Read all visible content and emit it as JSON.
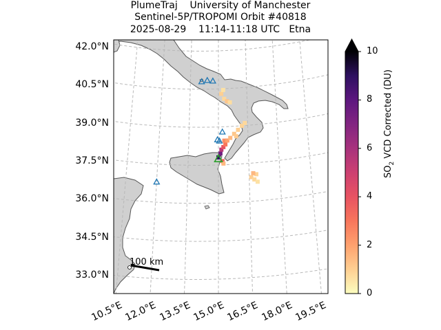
{
  "title": {
    "line1": "PlumeTraj    University of Manchester",
    "line2": "Sentinel-5P/TROPOMI Orbit #40818",
    "line3": "2025-08-29    11:14-11:18 UTC   Etna"
  },
  "axes": {
    "y_ticks": [
      {
        "value": 42.0,
        "label": "42.0°N"
      },
      {
        "value": 40.5,
        "label": "40.5°N"
      },
      {
        "value": 39.0,
        "label": "39.0°N"
      },
      {
        "value": 37.5,
        "label": "37.5°N"
      },
      {
        "value": 36.0,
        "label": "36.0°N"
      },
      {
        "value": 34.5,
        "label": "34.5°N"
      },
      {
        "value": 33.0,
        "label": "33.0°N"
      }
    ],
    "x_ticks": [
      {
        "value": 10.5,
        "label": "10.5°E"
      },
      {
        "value": 12.0,
        "label": "12.0°E"
      },
      {
        "value": 13.5,
        "label": "13.5°E"
      },
      {
        "value": 15.0,
        "label": "15.0°E"
      },
      {
        "value": 16.5,
        "label": "16.5°E"
      },
      {
        "value": 18.0,
        "label": "18.0°E"
      },
      {
        "value": 19.5,
        "label": "19.5°E"
      }
    ]
  },
  "colorbar": {
    "label_prefix": "SO",
    "label_sub": "2",
    "label_suffix": " VCD Corrected (DU)",
    "min": 0,
    "max": 10,
    "extend": "max",
    "ticks": [
      {
        "value": 0,
        "label": "0"
      },
      {
        "value": 2,
        "label": "2"
      },
      {
        "value": 4,
        "label": "4"
      },
      {
        "value": 6,
        "label": "6"
      },
      {
        "value": 8,
        "label": "8"
      },
      {
        "value": 10,
        "label": "10"
      }
    ],
    "colormap": "magma_r"
  },
  "scale_bar": {
    "label": "100 km"
  },
  "colors": {
    "land": "#d0d0d0",
    "coast": "#555555",
    "grid": "#b8b8b8",
    "volcano_marker": "#1f77b4",
    "source_marker": "#2ca02c"
  },
  "volcanoes": [
    {
      "lon": 14.1,
      "lat": 40.8
    },
    {
      "lon": 14.4,
      "lat": 40.85
    },
    {
      "lon": 14.7,
      "lat": 40.82
    },
    {
      "lon": 15.2,
      "lat": 38.8
    },
    {
      "lon": 14.95,
      "lat": 38.5
    },
    {
      "lon": 15.05,
      "lat": 38.45
    },
    {
      "lon": 12.0,
      "lat": 36.8
    }
  ],
  "source_volcano": {
    "lon": 15.0,
    "lat": 37.75
  },
  "plume": [
    {
      "lon": 15.0,
      "lat": 37.8,
      "so2": 9.0
    },
    {
      "lon": 15.1,
      "lat": 37.95,
      "so2": 7.5
    },
    {
      "lon": 15.15,
      "lat": 38.1,
      "so2": 5.5
    },
    {
      "lon": 15.25,
      "lat": 38.2,
      "so2": 4.0
    },
    {
      "lon": 15.35,
      "lat": 38.3,
      "so2": 3.0
    },
    {
      "lon": 15.3,
      "lat": 38.45,
      "so2": 2.5
    },
    {
      "lon": 15.45,
      "lat": 38.45,
      "so2": 2.0
    },
    {
      "lon": 15.6,
      "lat": 38.55,
      "so2": 1.5
    },
    {
      "lon": 15.8,
      "lat": 38.7,
      "so2": 1.2
    },
    {
      "lon": 16.0,
      "lat": 38.85,
      "so2": 1.0
    },
    {
      "lon": 16.2,
      "lat": 39.0,
      "so2": 0.9
    },
    {
      "lon": 16.35,
      "lat": 39.1,
      "so2": 0.8
    },
    {
      "lon": 15.9,
      "lat": 38.6,
      "so2": 1.1
    },
    {
      "lon": 15.2,
      "lat": 37.65,
      "so2": 3.5
    },
    {
      "lon": 15.25,
      "lat": 37.55,
      "so2": 1.5
    },
    {
      "lon": 15.15,
      "lat": 40.3,
      "so2": 1.0
    },
    {
      "lon": 15.3,
      "lat": 40.1,
      "so2": 0.8
    },
    {
      "lon": 15.45,
      "lat": 40.0,
      "so2": 1.2
    },
    {
      "lon": 15.6,
      "lat": 39.95,
      "so2": 0.7
    },
    {
      "lon": 15.25,
      "lat": 40.45,
      "so2": 0.6
    },
    {
      "lon": 16.6,
      "lat": 36.95,
      "so2": 1.0
    },
    {
      "lon": 16.75,
      "lat": 36.85,
      "so2": 0.8
    },
    {
      "lon": 16.85,
      "lat": 37.05,
      "so2": 0.9
    },
    {
      "lon": 16.9,
      "lat": 36.75,
      "so2": 0.6
    },
    {
      "lon": 16.7,
      "lat": 37.1,
      "so2": 1.5
    }
  ]
}
